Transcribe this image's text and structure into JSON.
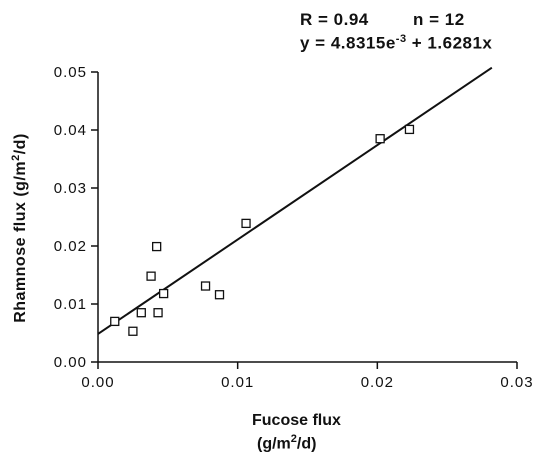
{
  "chart_data": {
    "type": "scatter",
    "stats": {
      "r_text": "R = 0.94",
      "n_text": "n = 12",
      "eq_prefix": "y = 4.8315e",
      "eq_exp": "-3",
      "eq_suffix": " + 1.6281x"
    },
    "xlabel_line1": "Fucose flux",
    "xlabel_line2_pre": "(g/m",
    "xlabel_line2_exp": "2",
    "xlabel_line2_post": "/d)",
    "ylabel_pre": "Rhamnose flux  (g/m",
    "ylabel_exp": "2",
    "ylabel_post": "/d)",
    "xlim": [
      0,
      0.03
    ],
    "ylim": [
      0,
      0.05
    ],
    "xticks": [
      "0.00",
      "0.01",
      "0.02",
      "0.03"
    ],
    "yticks": [
      "0.00",
      "0.01",
      "0.02",
      "0.03",
      "0.04",
      "0.05"
    ],
    "points": [
      {
        "x": 0.0012,
        "y": 0.007
      },
      {
        "x": 0.0025,
        "y": 0.0053
      },
      {
        "x": 0.0031,
        "y": 0.0085
      },
      {
        "x": 0.0038,
        "y": 0.0148
      },
      {
        "x": 0.0042,
        "y": 0.0199
      },
      {
        "x": 0.0043,
        "y": 0.0085
      },
      {
        "x": 0.0047,
        "y": 0.0118
      },
      {
        "x": 0.0077,
        "y": 0.0131
      },
      {
        "x": 0.0087,
        "y": 0.0116
      },
      {
        "x": 0.0106,
        "y": 0.0239
      },
      {
        "x": 0.0202,
        "y": 0.0385
      },
      {
        "x": 0.0223,
        "y": 0.0401
      }
    ],
    "fit": {
      "intercept": 0.0048315,
      "slope": 1.6281,
      "x_end": 0.0282
    }
  }
}
